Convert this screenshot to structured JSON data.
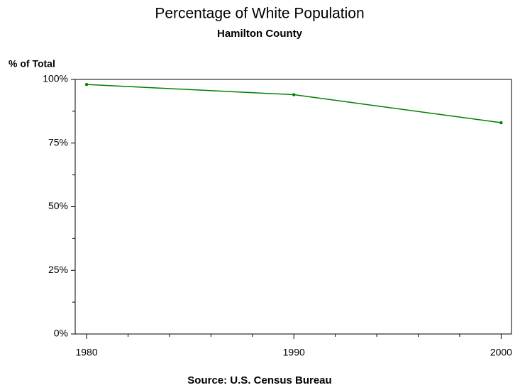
{
  "chart_data": {
    "type": "line",
    "title": "Percentage of White Population",
    "subtitle": "Hamilton County",
    "y_label": "% of Total",
    "footnote": "Source: U.S. Census Bureau",
    "x": [
      1980,
      1990,
      2000
    ],
    "series": [
      {
        "color": "#008000",
        "values": [
          98,
          94,
          83
        ]
      }
    ],
    "xlim": [
      1979.45,
      2000.5
    ],
    "xticks": [
      1980,
      1990,
      2000
    ],
    "xminorticks": [
      1982,
      1984,
      1986,
      1988,
      1992,
      1994,
      1996,
      1998
    ],
    "ylim": [
      0,
      100
    ],
    "yticks": [
      {
        "value": 0,
        "label": "0%"
      },
      {
        "value": 25,
        "label": "25%"
      },
      {
        "value": 50,
        "label": "50%"
      },
      {
        "value": 75,
        "label": "75%"
      },
      {
        "value": 100,
        "label": "100%"
      }
    ],
    "yminorticks": [
      12.5,
      37.5,
      62.5,
      87.5
    ],
    "grid": false
  }
}
